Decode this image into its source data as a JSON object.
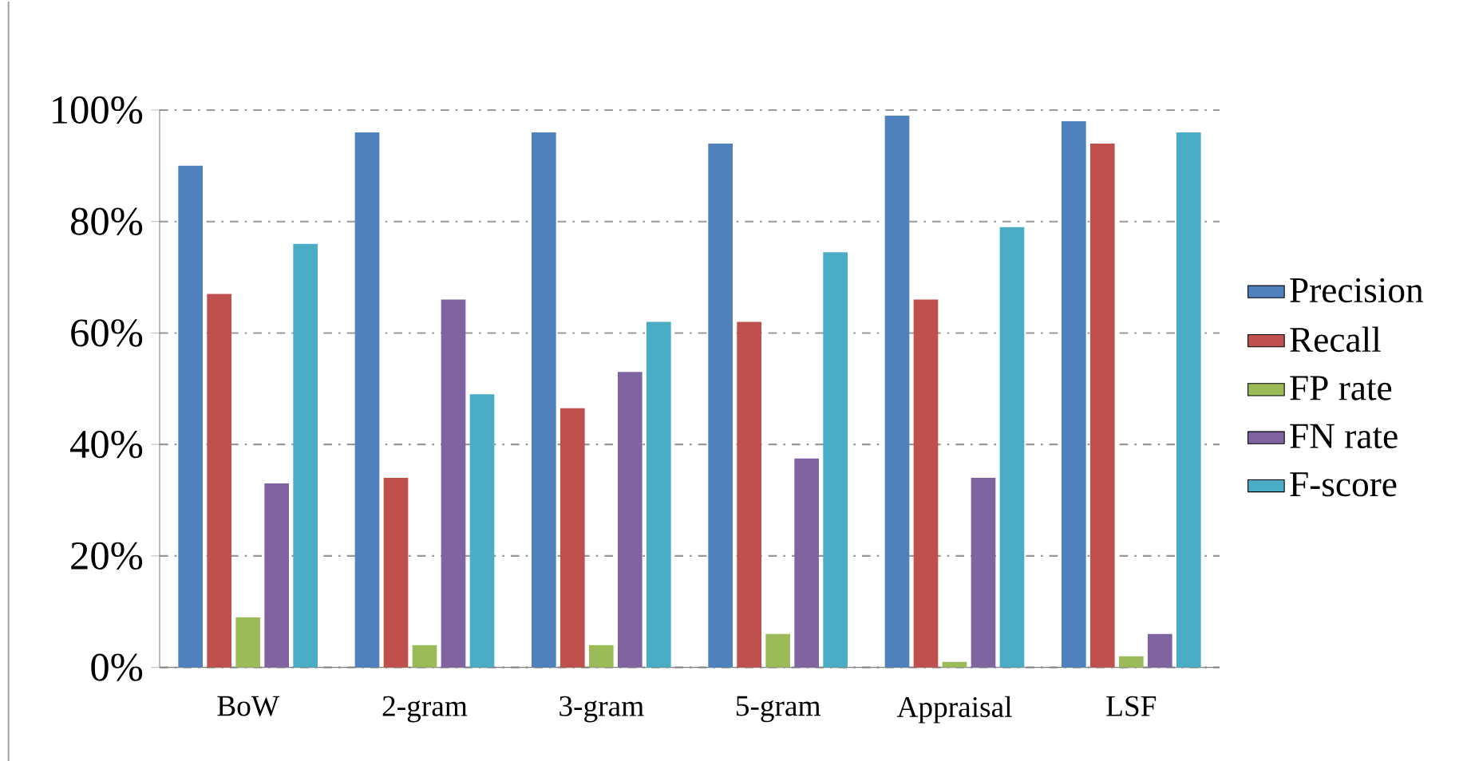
{
  "chart_data": {
    "type": "bar",
    "categories": [
      "BoW",
      "2-gram",
      "3-gram",
      "5-gram",
      "Appraisal",
      "LSF"
    ],
    "series": [
      {
        "name": "Precision",
        "color": "#4f81bd",
        "values": [
          90,
          96,
          96,
          94,
          99,
          98
        ]
      },
      {
        "name": "Recall",
        "color": "#c0504d",
        "values": [
          67,
          34,
          46.5,
          62,
          66,
          94
        ]
      },
      {
        "name": "FP rate",
        "color": "#9bbb59",
        "values": [
          9,
          4,
          4,
          6,
          1,
          2
        ]
      },
      {
        "name": "FN rate",
        "color": "#8064a2",
        "values": [
          33,
          66,
          53,
          37.5,
          34,
          6
        ]
      },
      {
        "name": "F-score",
        "color": "#4bacc6",
        "values": [
          76,
          49,
          62,
          74.5,
          79,
          96
        ]
      }
    ],
    "ylim": [
      0,
      100
    ],
    "yticks": [
      {
        "value": 0,
        "label": "0%"
      },
      {
        "value": 20,
        "label": "20%"
      },
      {
        "value": 40,
        "label": "40%"
      },
      {
        "value": 60,
        "label": "60%"
      },
      {
        "value": 80,
        "label": "80%"
      },
      {
        "value": 100,
        "label": "100%"
      }
    ],
    "grid": "y",
    "legend": "right"
  }
}
